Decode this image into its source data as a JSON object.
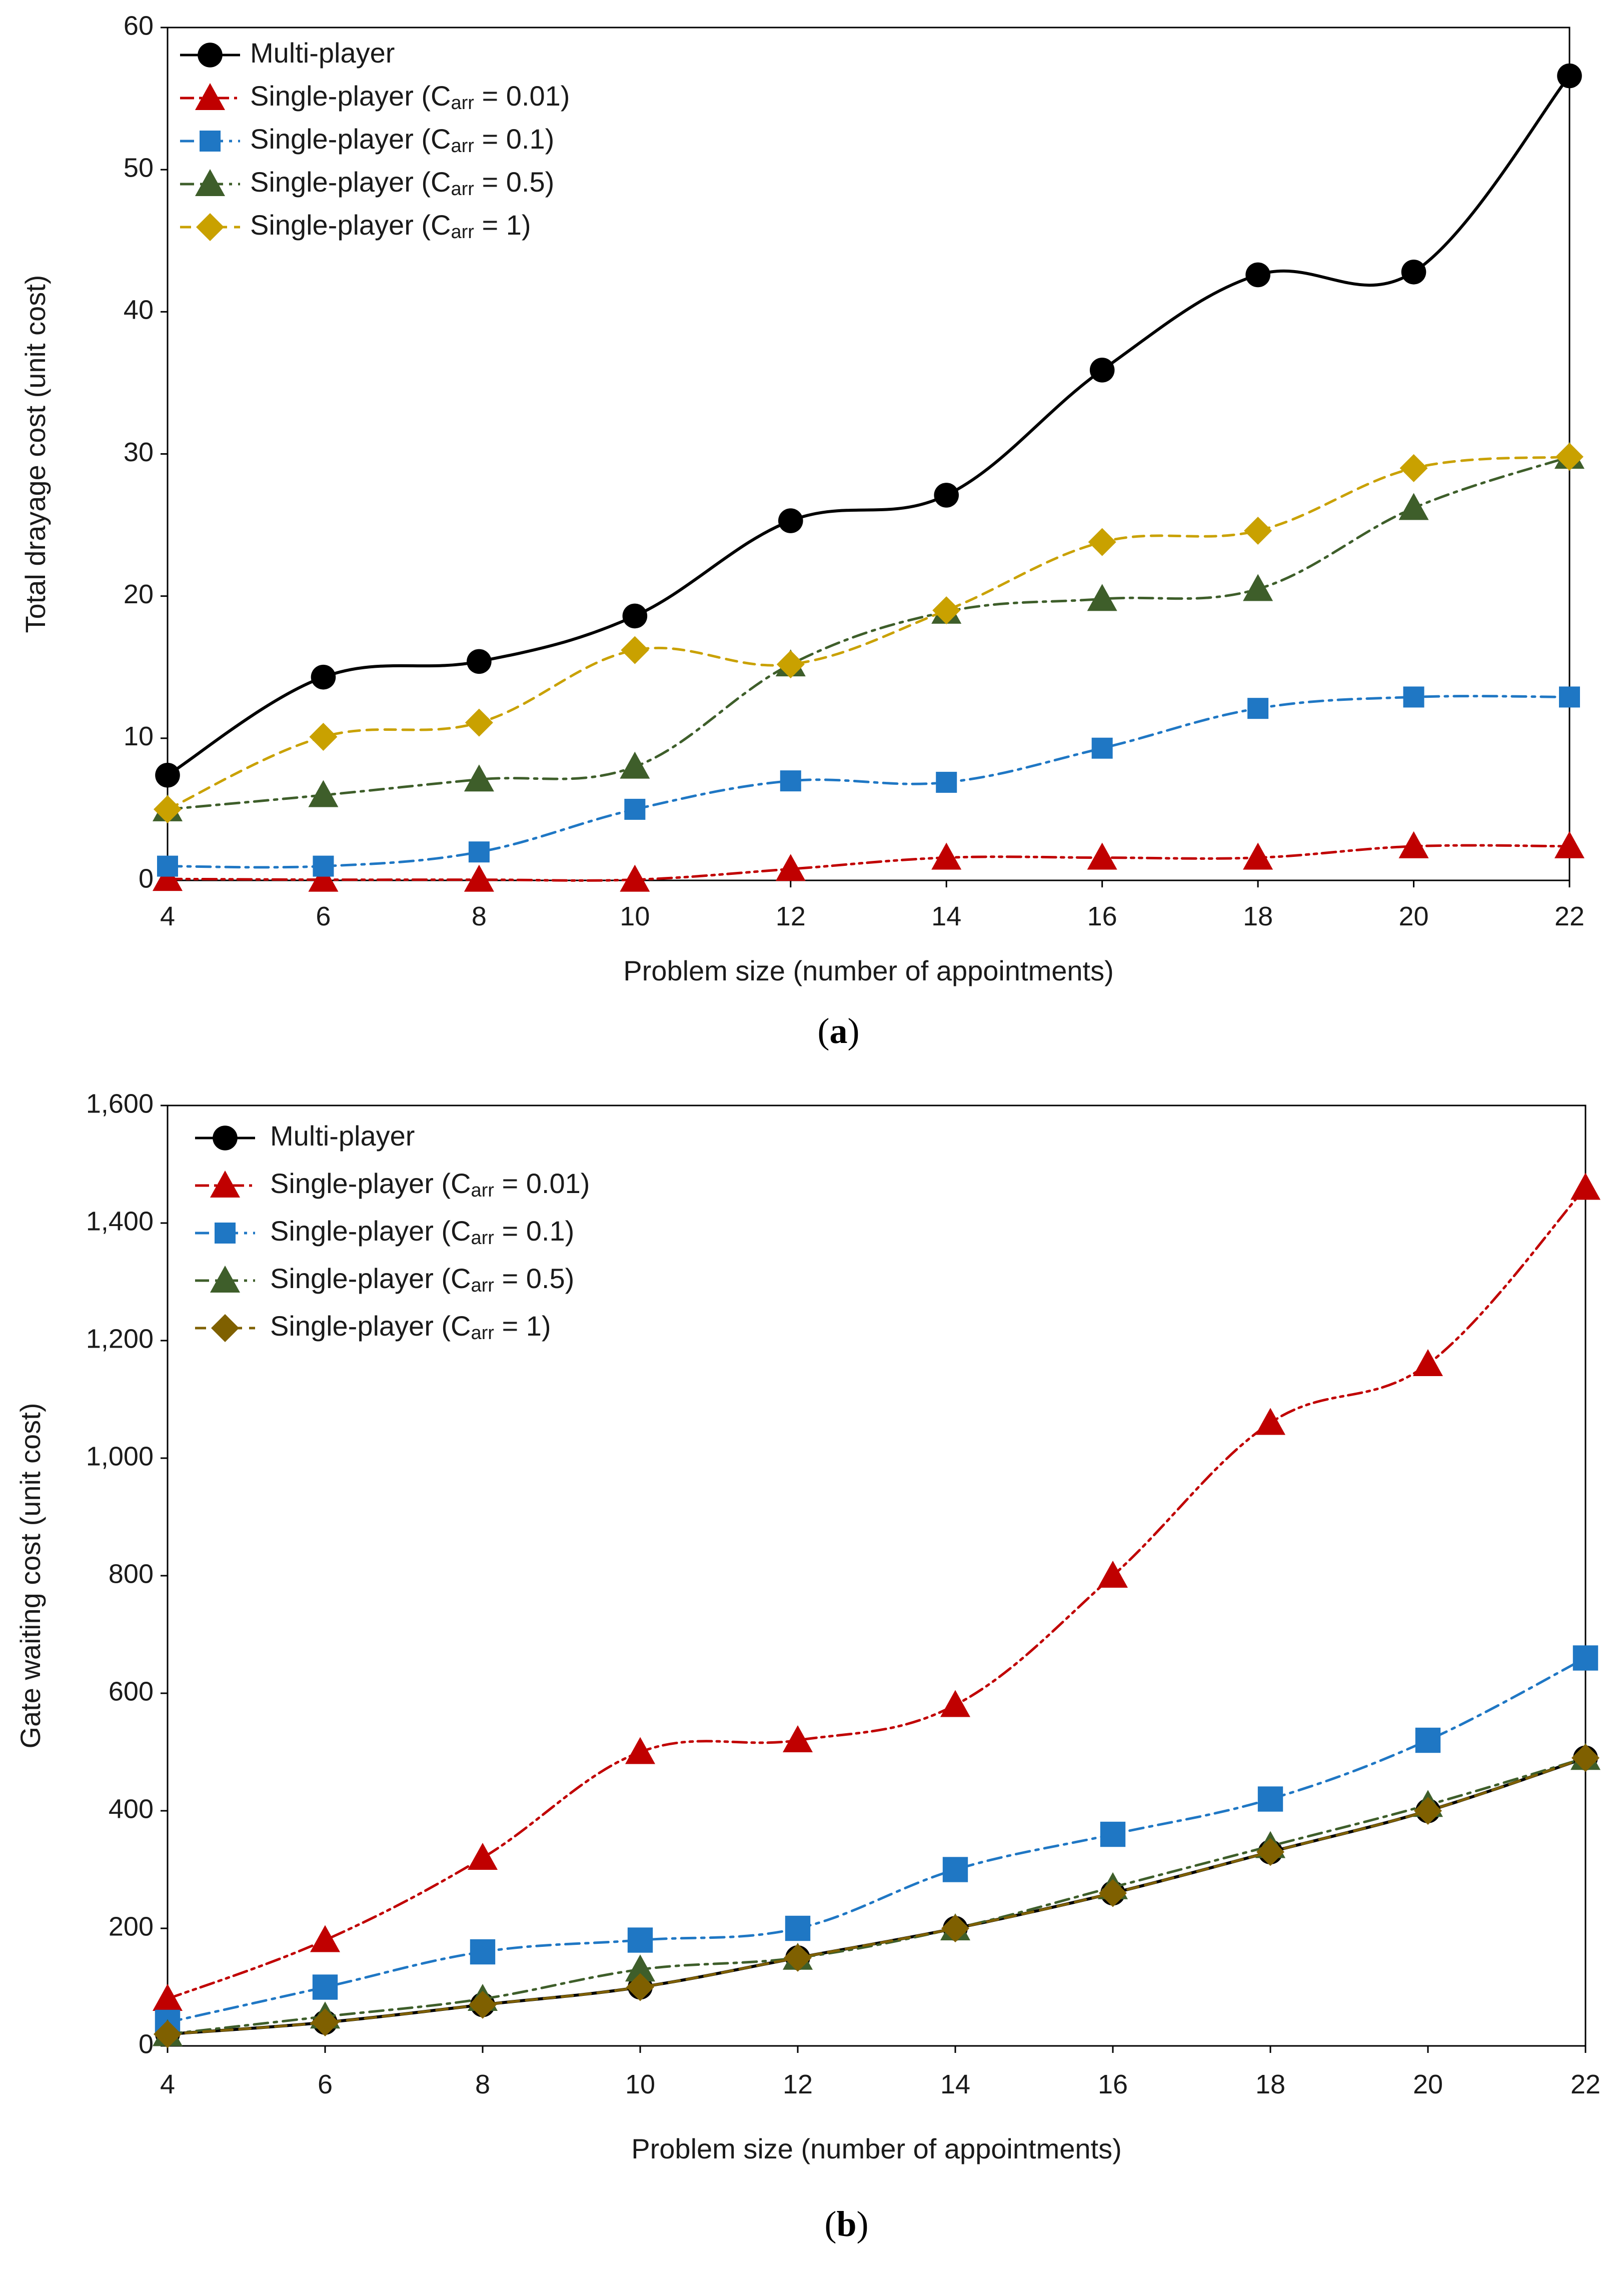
{
  "chart_data": [
    {
      "type": "line",
      "panel_label": "a",
      "xlabel": "Problem size (number of appointments)",
      "ylabel": "Total drayage cost (unit cost)",
      "x": [
        4,
        6,
        8,
        10,
        12,
        14,
        16,
        18,
        20,
        22
      ],
      "xlim": [
        4,
        22
      ],
      "ylim": [
        0,
        60
      ],
      "xticks": [
        "4",
        "6",
        "8",
        "10",
        "12",
        "14",
        "16",
        "18",
        "20",
        "22"
      ],
      "yticks": [
        "0",
        "10",
        "20",
        "30",
        "40",
        "50",
        "60"
      ],
      "legend_position": "top-left",
      "grid": false,
      "series": [
        {
          "name": "Multi-player",
          "color": "#000000",
          "dash": "solid",
          "marker": "circle",
          "values": [
            7.4,
            14.3,
            15.4,
            18.6,
            25.3,
            27.1,
            35.9,
            42.6,
            42.8,
            56.6
          ]
        },
        {
          "name_prefix": "Single-player (C",
          "name_sub": "arr",
          "name_suffix": " = 0.01)",
          "color": "#c00000",
          "dash": "dashdotdot",
          "marker": "triangle",
          "values": [
            0.1,
            0.05,
            0.05,
            0.05,
            0.8,
            1.6,
            1.6,
            1.6,
            2.4,
            2.4
          ]
        },
        {
          "name_prefix": "Single-player (C",
          "name_sub": "arr",
          "name_suffix": " = 0.1)",
          "color": "#1f77c4",
          "dash": "dashdot",
          "marker": "square",
          "values": [
            1.0,
            1.0,
            2.0,
            5.0,
            7.0,
            6.9,
            9.3,
            12.1,
            12.9,
            12.9
          ]
        },
        {
          "name_prefix": "Single-player (C",
          "name_sub": "arr",
          "name_suffix": " = 0.5)",
          "color": "#3e5e2a",
          "dash": "dashdot",
          "marker": "triangle",
          "values": [
            5.0,
            6.0,
            7.1,
            8.0,
            15.2,
            18.9,
            19.8,
            20.5,
            26.2,
            29.8
          ]
        },
        {
          "name_prefix": "Single-player (C",
          "name_sub": "arr",
          "name_suffix": " = 1)",
          "color": "#c9a100",
          "dash": "dash",
          "marker": "diamond",
          "values": [
            5.0,
            10.1,
            11.1,
            16.2,
            15.2,
            19.0,
            23.8,
            24.6,
            29.0,
            29.8
          ]
        }
      ]
    },
    {
      "type": "line",
      "panel_label": "b",
      "xlabel": "Problem size (number of appointments)",
      "ylabel": "Gate waiting cost (unit cost)",
      "x": [
        4,
        6,
        8,
        10,
        12,
        14,
        16,
        18,
        20,
        22
      ],
      "xlim": [
        4,
        22
      ],
      "ylim": [
        0,
        1600
      ],
      "xticks": [
        "4",
        "6",
        "8",
        "10",
        "12",
        "14",
        "16",
        "18",
        "20",
        "22"
      ],
      "yticks": [
        "0",
        "200",
        "400",
        "600",
        "800",
        "1,000",
        "1,200",
        "1,400",
        "1,600"
      ],
      "legend_position": "top-left",
      "grid": false,
      "series": [
        {
          "name": "Multi-player",
          "color": "#000000",
          "dash": "solid",
          "marker": "circle",
          "values": [
            20,
            40,
            70,
            100,
            150,
            200,
            260,
            330,
            400,
            490
          ]
        },
        {
          "name_prefix": "Single-player (C",
          "name_sub": "arr",
          "name_suffix": " = 0.01)",
          "color": "#c00000",
          "dash": "dashdotdot",
          "marker": "triangle",
          "values": [
            80,
            180,
            320,
            500,
            520,
            580,
            800,
            1060,
            1160,
            1460
          ]
        },
        {
          "name_prefix": "Single-player (C",
          "name_sub": "arr",
          "name_suffix": " = 0.1)",
          "color": "#1f77c4",
          "dash": "dashdot",
          "marker": "square",
          "values": [
            40,
            100,
            160,
            180,
            200,
            300,
            360,
            420,
            520,
            660
          ]
        },
        {
          "name_prefix": "Single-player (C",
          "name_sub": "arr",
          "name_suffix": " = 0.5)",
          "color": "#3e5e2a",
          "dash": "dashdot",
          "marker": "triangle",
          "values": [
            20,
            50,
            80,
            130,
            150,
            200,
            270,
            340,
            410,
            490
          ]
        },
        {
          "name_prefix": "Single-player (C",
          "name_sub": "arr",
          "name_suffix": " = 1)",
          "color": "#7f6000",
          "dash": "dash",
          "marker": "diamond",
          "values": [
            20,
            40,
            70,
            100,
            150,
            200,
            260,
            330,
            400,
            490
          ]
        }
      ]
    }
  ]
}
